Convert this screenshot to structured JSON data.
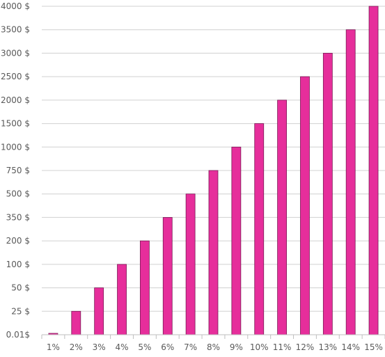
{
  "chart_data": {
    "type": "bar",
    "title": "",
    "xlabel": "",
    "ylabel": "",
    "categories": [
      "1%",
      "2%",
      "3%",
      "4%",
      "5%",
      "6%",
      "7%",
      "8%",
      "9%",
      "10%",
      "11%",
      "12%",
      "13%",
      "14%",
      "15%"
    ],
    "values": [
      0.01,
      25,
      50,
      100,
      200,
      350,
      500,
      750,
      1000,
      1500,
      2000,
      2500,
      3000,
      3500,
      4000
    ],
    "y_tick_labels": [
      "0.01$",
      "25 $",
      "50 $",
      "100 $",
      "200 $",
      "350 $",
      "500 $",
      "750 $",
      "1000 $",
      "1500 $",
      "2000 $",
      "2500 $",
      "3000 $",
      "3500 $",
      "4000 $"
    ],
    "y_scale": "categorical, evenly spaced ticks",
    "grid": true,
    "legend": "none",
    "colors": {
      "bar_fill": "#e62e9b",
      "bar_stroke": "#7a1a55",
      "grid": "#d0d0d0",
      "axis": "#bfbfbf",
      "label": "#595959"
    }
  }
}
